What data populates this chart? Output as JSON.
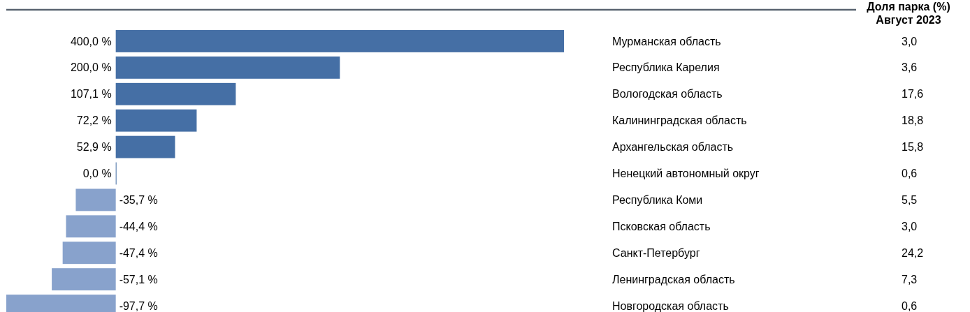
{
  "chart_data": {
    "type": "bar",
    "orientation": "horizontal",
    "categories": [
      "Мурманская область",
      "Республика Карелия",
      "Вологодская область",
      "Калининградская область",
      "Архангельская область",
      "Ненецкий автономный округ",
      "Республика Коми",
      "Псковская область",
      "Санкт-Петербург",
      "Ленинградская область",
      "Новгородская область"
    ],
    "values": [
      400.0,
      200.0,
      107.1,
      72.2,
      52.9,
      0.0,
      -35.7,
      -44.4,
      -47.4,
      -57.1,
      -97.7
    ],
    "colors": [
      "#456fa5",
      "#456fa5",
      "#456fa5",
      "#456fa5",
      "#456fa5",
      "#456fa5",
      "#88a2cc",
      "#88a2cc",
      "#88a2cc",
      "#88a2cc",
      "#88a2cc"
    ],
    "value_labels": [
      "400,0 %",
      "200,0 %",
      "107,1 %",
      "72,2 %",
      "52,9 %",
      "0,0 %",
      "-35,7 %",
      "-44,4 %",
      "-47,4 %",
      "-57,1 %",
      "-97,7 %"
    ],
    "annotations": [
      "Доля парка (%)\nАвгуст 2023",
      "3,0",
      "3,6",
      "17,6",
      "18,8",
      "15,8",
      "0,6",
      "5,5",
      "3,0",
      "24,2",
      "7,3",
      "0,6"
    ],
    "stacked": false
  }
}
